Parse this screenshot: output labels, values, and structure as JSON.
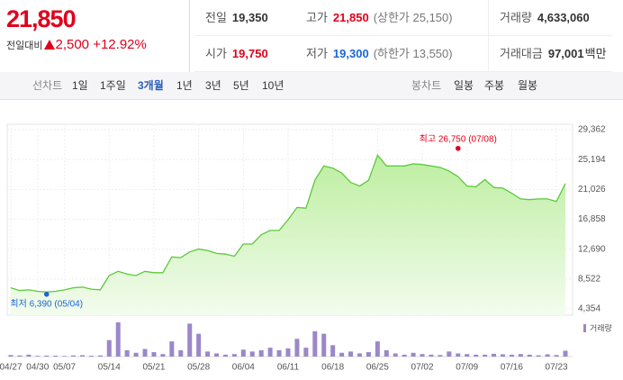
{
  "quote": {
    "price": "21,850",
    "change_label": "전일대비",
    "change": "2,500",
    "change_pct": "+12.92%"
  },
  "stats": [
    {
      "label": "전일",
      "value": "19,350",
      "tone": "plain"
    },
    {
      "label": "고가",
      "value": "21,850",
      "note": "(상한가 25,150)",
      "tone": "up"
    },
    {
      "label": "거래량",
      "value": "4,633,060",
      "tone": "plain"
    },
    {
      "label": "시가",
      "value": "19,750",
      "tone": "up"
    },
    {
      "label": "저가",
      "value": "19,300",
      "note": "(하한가 13,550)",
      "tone": "down"
    },
    {
      "label": "거래대금",
      "value": "97,001",
      "unit": "백만",
      "tone": "plain"
    }
  ],
  "tabs": {
    "line_label": "선차트",
    "periods": [
      "1일",
      "1주일",
      "3개월",
      "1년",
      "3년",
      "5년",
      "10년"
    ],
    "selected": 2,
    "candle_label": "봉차트",
    "candle_periods": [
      "일봉",
      "주봉",
      "월봉"
    ]
  },
  "chart_data": {
    "type": "line",
    "categories": [
      "04/27",
      null,
      null,
      "04/30",
      null,
      null,
      "05/07",
      null,
      null,
      null,
      null,
      "05/14",
      null,
      null,
      null,
      null,
      "05/21",
      null,
      null,
      null,
      null,
      "05/28",
      null,
      null,
      null,
      null,
      "06/04",
      null,
      null,
      null,
      null,
      "06/11",
      null,
      null,
      null,
      null,
      "06/18",
      null,
      null,
      null,
      null,
      "06/25",
      null,
      null,
      null,
      null,
      "07/02",
      null,
      null,
      null,
      null,
      "07/09",
      null,
      null,
      null,
      null,
      "07/16",
      null,
      null,
      null,
      null,
      "07/23",
      null
    ],
    "values": [
      7300,
      6900,
      7000,
      6800,
      6700,
      6800,
      7000,
      7300,
      7400,
      7100,
      7000,
      9000,
      9600,
      9200,
      9000,
      9600,
      9400,
      9400,
      11600,
      11500,
      12300,
      12700,
      12500,
      12100,
      12000,
      11700,
      13400,
      13400,
      14700,
      15300,
      15300,
      16800,
      18500,
      18400,
      22300,
      24300,
      24000,
      23300,
      22000,
      21500,
      22300,
      25800,
      24300,
      24300,
      24300,
      24600,
      24500,
      24300,
      24100,
      23600,
      22800,
      21500,
      21400,
      22400,
      21300,
      21200,
      20500,
      19700,
      19600,
      19700,
      19700,
      19350,
      21850
    ],
    "color": "#5cc93b",
    "volume": {
      "name": "거래량",
      "color": "#9b87c9",
      "values": [
        1200000,
        900000,
        1500000,
        600000,
        800000,
        700000,
        500000,
        900000,
        1100000,
        700000,
        900000,
        13000000,
        27000000,
        5000000,
        3000000,
        6000000,
        3500000,
        2000000,
        12000000,
        5000000,
        26000000,
        18000000,
        4000000,
        2500000,
        1500000,
        2000000,
        5500000,
        4000000,
        5000000,
        7000000,
        5000000,
        6500000,
        14000000,
        7000000,
        20000000,
        18000000,
        9000000,
        3000000,
        4000000,
        2500000,
        3500000,
        12000000,
        5000000,
        2500000,
        1500000,
        3000000,
        2000000,
        1500000,
        1200000,
        4000000,
        2500000,
        2000000,
        1500000,
        1500000,
        2200000,
        1800000,
        1500000,
        2000000,
        1500000,
        1000000,
        1800000,
        1200000,
        4633060
      ]
    },
    "ylim": [
      4354,
      29362
    ],
    "yticks": [
      {
        "value": 4354,
        "label": "4,354"
      },
      {
        "value": 8522,
        "label": "8,522"
      },
      {
        "value": 12690,
        "label": "12,690"
      },
      {
        "value": 16858,
        "label": "16,858"
      },
      {
        "value": 21026,
        "label": "21,026"
      },
      {
        "value": 25194,
        "label": "25,194"
      },
      {
        "value": 29362,
        "label": "29,362"
      }
    ],
    "grid": true,
    "annotations": [
      {
        "text": "최고 26,750 (07/08)",
        "value": 26750,
        "category_index": 50,
        "color": "#e0001b"
      },
      {
        "text": "최저 6,390 (05/04)",
        "value": 6390,
        "category_index": 4,
        "color": "#1a66d6"
      }
    ]
  }
}
